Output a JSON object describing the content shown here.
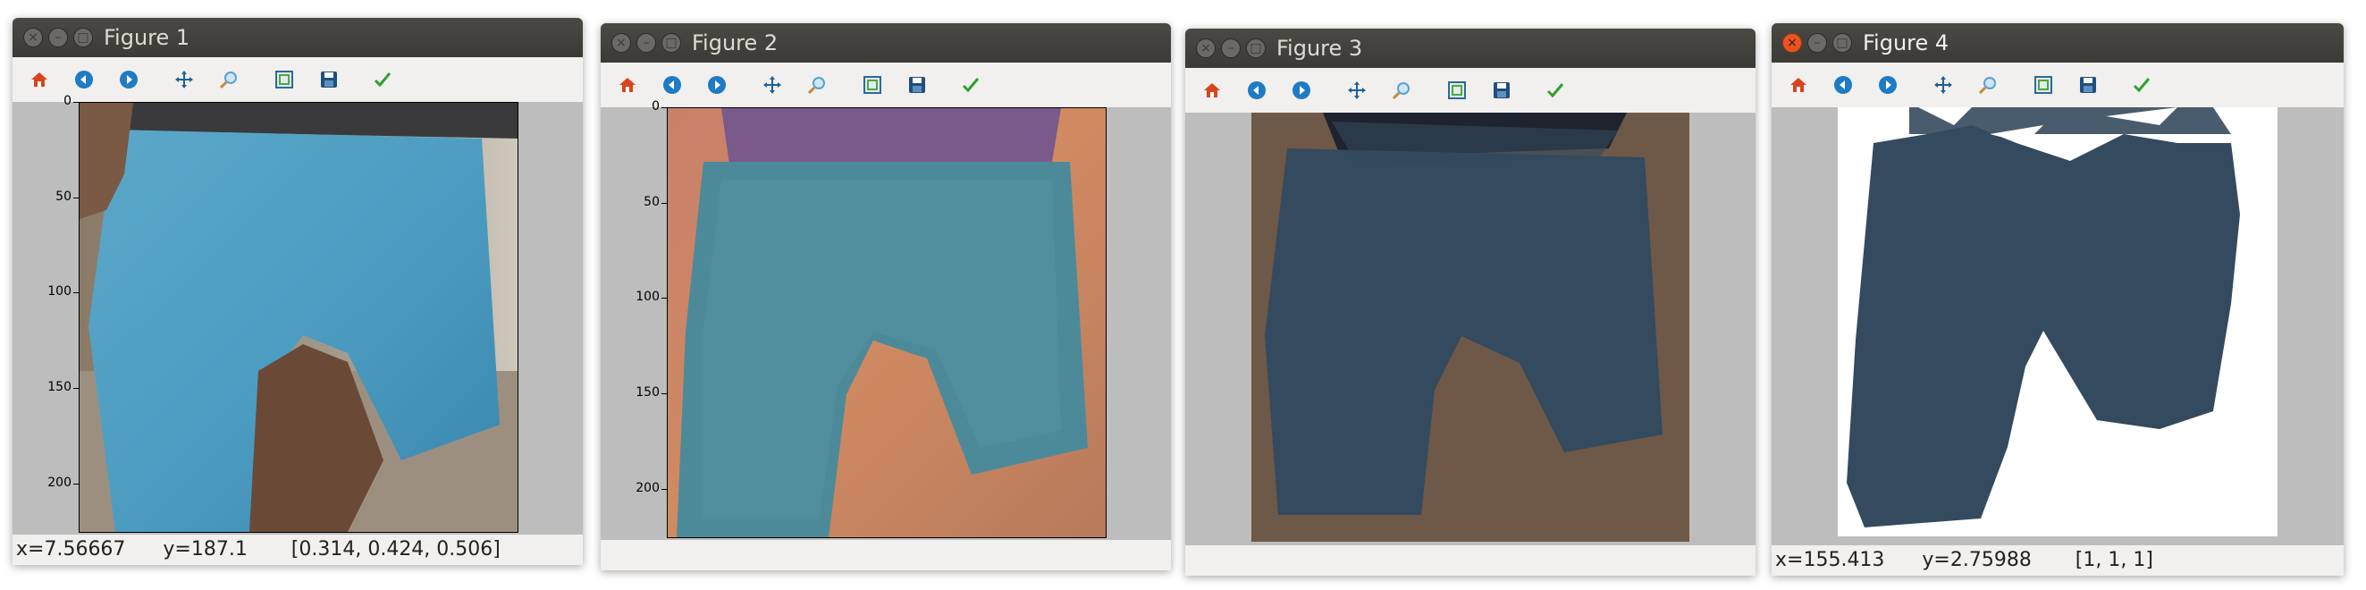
{
  "windows": [
    {
      "title": "Figure 1",
      "status": "x=7.56667      y=187.1       [0.314, 0.424, 0.506]",
      "active": false
    },
    {
      "title": "Figure 2",
      "status": "",
      "active": false
    },
    {
      "title": "Figure 3",
      "status": "",
      "active": false
    },
    {
      "title": "Figure 4",
      "status": "x=155.413      y=2.75988       [1, 1, 1]",
      "active": true
    }
  ],
  "toolbar": [
    "home-icon",
    "back-icon",
    "forward-icon",
    "pan-icon",
    "zoom-icon",
    "subplots-icon",
    "save-icon",
    "edit-icon"
  ],
  "y_ticks": [
    "0",
    "50",
    "100",
    "150",
    "200"
  ],
  "colors": {
    "shorts": "#344a5e",
    "brown": "#6e5847",
    "accent": "#e95420"
  }
}
